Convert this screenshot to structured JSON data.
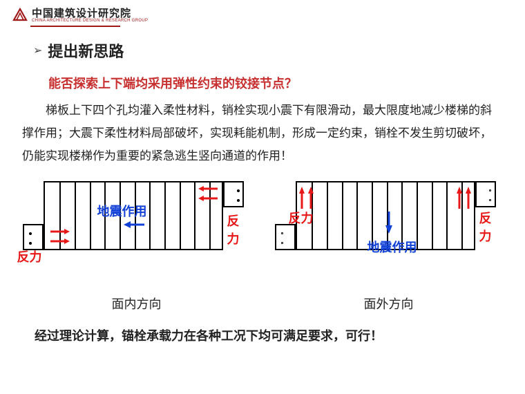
{
  "header": {
    "company_cn": "中国建筑设计研究院",
    "company_en": "CHINA ARCHITECTURE DESIGN & RESEARCH GROUP"
  },
  "section": {
    "chevron": "➢",
    "title": "提出新思路"
  },
  "subtitle": "能否探索上下端均采用弹性约束的铰接节点？",
  "body": "梯板上下四个孔均灌入柔性材料，销栓实现小震下有限滑动，最大限度地减少楼梯的斜撑作用；大震下柔性材料局部破坏，实现耗能机制，形成一定约束，销栓不发生剪切破坏，仍能实现楼梯作为重要的紧急逃生竖向通道的作用！",
  "labels": {
    "reaction": "反力",
    "seismic": "地震作用"
  },
  "diagrams": {
    "left_caption": "面内方向",
    "right_caption": "面外方向",
    "colors": {
      "red": "#e81818",
      "blue": "#1040d6",
      "border": "#000000"
    },
    "panel": {
      "slat_count": 12,
      "main_width": 260,
      "main_height": 100,
      "edge_width": 30,
      "edge_height": 38
    }
  },
  "conclusion": "经过理论计算，锚栓承载力在各种工况下均可满足要求，可行！"
}
